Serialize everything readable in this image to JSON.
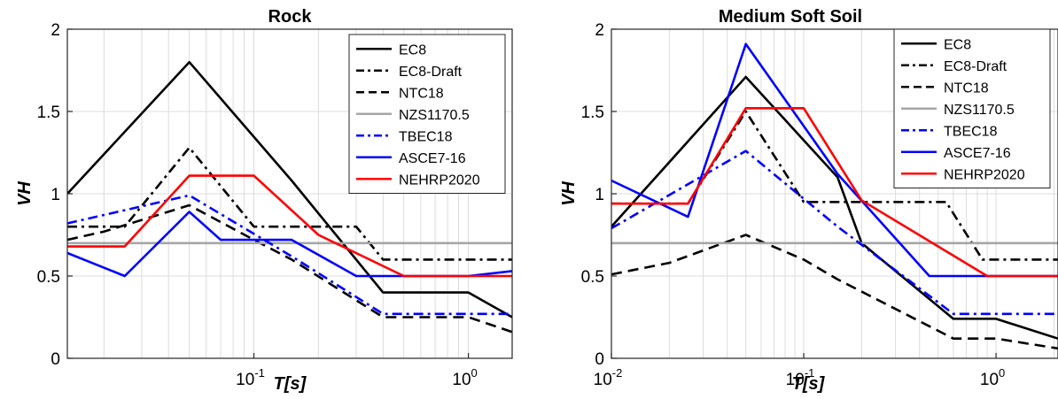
{
  "chart_data": [
    {
      "type": "line",
      "title": "Rock",
      "xlabel": "T[s]",
      "ylabel": "VH",
      "xscale": "log",
      "xlim": [
        0.0135,
        1.6
      ],
      "ylim": [
        0,
        2
      ],
      "yticks": [
        "0",
        "0.5",
        "1",
        "1.5",
        "2"
      ],
      "xticks": [
        {
          "value": 0.1,
          "base": "10",
          "exp": "-1"
        },
        {
          "value": 1,
          "base": "10",
          "exp": "0"
        }
      ],
      "grid": true,
      "legend": "top-right",
      "series": [
        {
          "name": "EC8",
          "color": "#000000",
          "dash": "solid",
          "points": [
            [
              0.0135,
              1.0
            ],
            [
              0.05,
              1.8
            ],
            [
              0.15,
              1.08
            ],
            [
              0.4,
              0.4
            ],
            [
              1.0,
              0.4
            ],
            [
              1.6,
              0.25
            ]
          ]
        },
        {
          "name": "EC8-Draft",
          "color": "#000000",
          "dash": "dashdot",
          "points": [
            [
              0.0135,
              0.8
            ],
            [
              0.025,
              0.8
            ],
            [
              0.05,
              1.28
            ],
            [
              0.1,
              0.8
            ],
            [
              0.3,
              0.8
            ],
            [
              0.4,
              0.6
            ],
            [
              1.6,
              0.6
            ]
          ]
        },
        {
          "name": "NTC18",
          "color": "#000000",
          "dash": "dashed",
          "points": [
            [
              0.0135,
              0.72
            ],
            [
              0.02,
              0.77
            ],
            [
              0.05,
              0.93
            ],
            [
              0.1,
              0.72
            ],
            [
              0.15,
              0.6
            ],
            [
              0.4,
              0.25
            ],
            [
              1.0,
              0.25
            ],
            [
              1.6,
              0.16
            ]
          ]
        },
        {
          "name": "NZS1170.5",
          "color": "#a6a6a6",
          "dash": "solid",
          "points": [
            [
              0.0135,
              0.7
            ],
            [
              1.6,
              0.7
            ]
          ]
        },
        {
          "name": "TBEC18",
          "color": "#0000ff",
          "dash": "dashdot",
          "points": [
            [
              0.0135,
              0.82
            ],
            [
              0.05,
              0.99
            ],
            [
              0.15,
              0.62
            ],
            [
              0.4,
              0.27
            ],
            [
              1.6,
              0.27
            ]
          ]
        },
        {
          "name": "ASCE7-16",
          "color": "#0000ff",
          "dash": "solid",
          "points": [
            [
              0.0135,
              0.64
            ],
            [
              0.025,
              0.5
            ],
            [
              0.05,
              0.89
            ],
            [
              0.07,
              0.72
            ],
            [
              0.15,
              0.72
            ],
            [
              0.3,
              0.5
            ],
            [
              1.0,
              0.5
            ],
            [
              1.6,
              0.53
            ]
          ]
        },
        {
          "name": "NEHRP2020",
          "color": "#ff0000",
          "dash": "solid",
          "points": [
            [
              0.0135,
              0.68
            ],
            [
              0.025,
              0.68
            ],
            [
              0.05,
              1.11
            ],
            [
              0.1,
              1.11
            ],
            [
              0.2,
              0.75
            ],
            [
              0.5,
              0.5
            ],
            [
              1.6,
              0.5
            ]
          ]
        }
      ]
    },
    {
      "type": "line",
      "title": "Medium Soft Soil",
      "xlabel": "T[s]",
      "ylabel": "VH",
      "xscale": "log",
      "xlim": [
        0.01,
        2.1
      ],
      "ylim": [
        0,
        2
      ],
      "yticks": [
        "0",
        "0.5",
        "1",
        "1.5",
        "2"
      ],
      "xticks": [
        {
          "value": 0.01,
          "base": "10",
          "exp": "-2"
        },
        {
          "value": 0.1,
          "base": "10",
          "exp": "-1"
        },
        {
          "value": 1,
          "base": "10",
          "exp": "0"
        }
      ],
      "grid": true,
      "legend": "top-right",
      "series": [
        {
          "name": "EC8",
          "color": "#000000",
          "dash": "solid",
          "points": [
            [
              0.01,
              0.8
            ],
            [
              0.05,
              1.71
            ],
            [
              0.15,
              1.1
            ],
            [
              0.2,
              0.7
            ],
            [
              0.6,
              0.24
            ],
            [
              1.0,
              0.24
            ],
            [
              2.1,
              0.12
            ]
          ]
        },
        {
          "name": "EC8-Draft",
          "color": "#000000",
          "dash": "dashdot",
          "points": [
            [
              0.01,
              0.94
            ],
            [
              0.025,
              0.94
            ],
            [
              0.05,
              1.5
            ],
            [
              0.1,
              0.95
            ],
            [
              0.55,
              0.95
            ],
            [
              0.85,
              0.6
            ],
            [
              2.1,
              0.6
            ]
          ]
        },
        {
          "name": "NTC18",
          "color": "#000000",
          "dash": "dashed",
          "points": [
            [
              0.01,
              0.51
            ],
            [
              0.02,
              0.58
            ],
            [
              0.05,
              0.75
            ],
            [
              0.1,
              0.6
            ],
            [
              0.15,
              0.48
            ],
            [
              0.6,
              0.12
            ],
            [
              1.0,
              0.12
            ],
            [
              2.1,
              0.06
            ]
          ]
        },
        {
          "name": "NZS1170.5",
          "color": "#a6a6a6",
          "dash": "solid",
          "points": [
            [
              0.01,
              0.7
            ],
            [
              2.1,
              0.7
            ]
          ]
        },
        {
          "name": "TBEC18",
          "color": "#0000ff",
          "dash": "dashdot",
          "points": [
            [
              0.01,
              0.79
            ],
            [
              0.05,
              1.26
            ],
            [
              0.15,
              0.8
            ],
            [
              0.6,
              0.27
            ],
            [
              2.1,
              0.27
            ]
          ]
        },
        {
          "name": "ASCE7-16",
          "color": "#0000ff",
          "dash": "solid",
          "points": [
            [
              0.01,
              1.08
            ],
            [
              0.025,
              0.86
            ],
            [
              0.05,
              1.91
            ],
            [
              0.15,
              1.12
            ],
            [
              0.45,
              0.5
            ],
            [
              1.0,
              0.5
            ],
            [
              2.1,
              0.5
            ]
          ]
        },
        {
          "name": "NEHRP2020",
          "color": "#ff0000",
          "dash": "solid",
          "points": [
            [
              0.01,
              0.94
            ],
            [
              0.025,
              0.94
            ],
            [
              0.05,
              1.52
            ],
            [
              0.1,
              1.52
            ],
            [
              0.2,
              0.96
            ],
            [
              0.9,
              0.5
            ],
            [
              2.1,
              0.5
            ]
          ]
        }
      ]
    }
  ]
}
